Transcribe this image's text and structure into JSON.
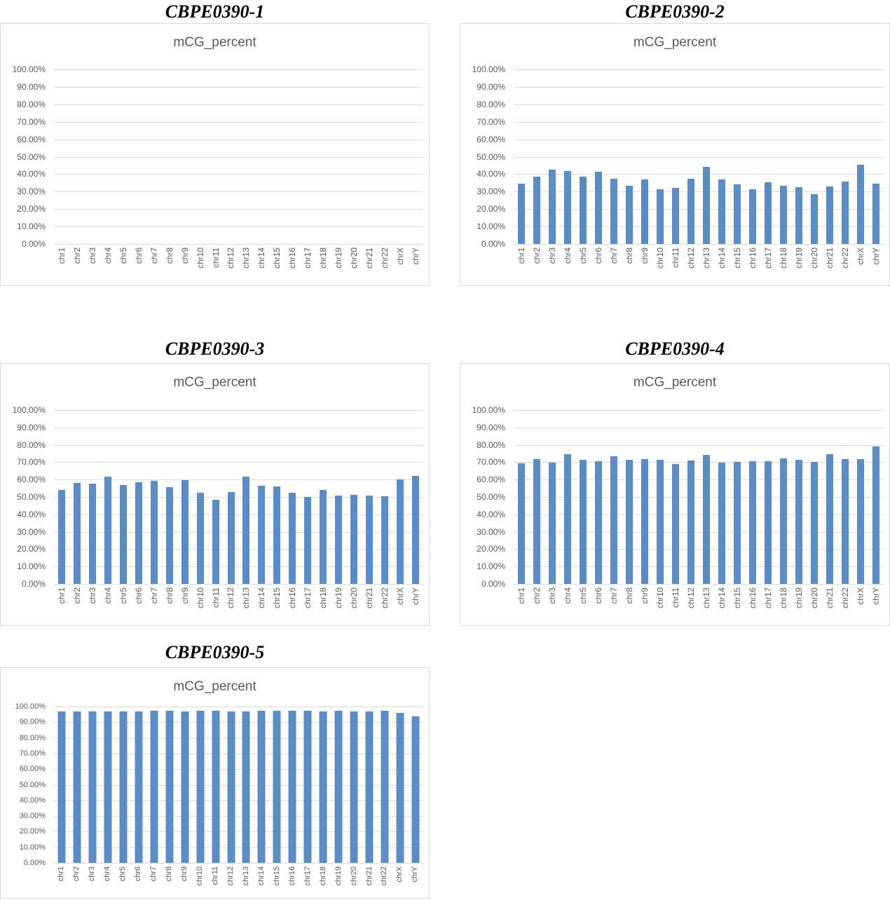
{
  "figure_background": "#ffffff",
  "colors": {
    "bar": "#5a8cc8",
    "gridline": "#d9d9d9",
    "axis_text": "#595959",
    "chart_title_text": "#595959",
    "panel_border": "#d9d9d9",
    "panel_title_text": "#000000"
  },
  "chart_data": [
    {
      "type": "bar",
      "panel_title": "CBPE0390-1",
      "title": "mCG_percent",
      "xlabel": "",
      "ylabel": "",
      "ylim": [
        0,
        100
      ],
      "ytick_step": 10,
      "ytick_labels": [
        "100.00%",
        "90.00%",
        "80.00%",
        "70.00%",
        "60.00%",
        "50.00%",
        "40.00%",
        "30.00%",
        "20.00%",
        "10.00%",
        "0.00%"
      ],
      "grid": true,
      "legend": false,
      "categories": [
        "chr1",
        "chr2",
        "chr3",
        "chr4",
        "chr5",
        "chr6",
        "chr7",
        "chr8",
        "chr9",
        "chr10",
        "chr11",
        "chr12",
        "chr13",
        "chr14",
        "chr15",
        "chr16",
        "chr17",
        "chr18",
        "chr19",
        "chr20",
        "chr21",
        "chr22",
        "chrX",
        "chrY"
      ],
      "values": []
    },
    {
      "type": "bar",
      "panel_title": "CBPE0390-2",
      "title": "mCG_percent",
      "xlabel": "",
      "ylabel": "",
      "ylim": [
        0,
        100
      ],
      "ytick_step": 10,
      "ytick_labels": [
        "100.00%",
        "90.00%",
        "80.00%",
        "70.00%",
        "60.00%",
        "50.00%",
        "40.00%",
        "30.00%",
        "20.00%",
        "10.00%",
        "0.00%"
      ],
      "grid": true,
      "legend": false,
      "categories": [
        "chr1",
        "chr2",
        "chr3",
        "chr4",
        "chr5",
        "chr6",
        "chr7",
        "chr8",
        "chr9",
        "chr10",
        "chr11",
        "chr12",
        "chr13",
        "chr14",
        "chr15",
        "chr16",
        "chr17",
        "chr18",
        "chr19",
        "chr20",
        "chr21",
        "chr22",
        "chrX",
        "chrY"
      ],
      "values": [
        34.5,
        38.4,
        42.6,
        41.6,
        38.7,
        41.2,
        37.5,
        33.5,
        37.1,
        31.5,
        32.0,
        37.2,
        44.0,
        36.8,
        34.3,
        31.3,
        35.5,
        33.2,
        32.5,
        28.5,
        32.9,
        35.9,
        45.5,
        34.5
      ]
    },
    {
      "type": "bar",
      "panel_title": "CBPE0390-3",
      "title": "mCG_percent",
      "xlabel": "",
      "ylabel": "",
      "ylim": [
        0,
        100
      ],
      "ytick_step": 10,
      "ytick_labels": [
        "100.00%",
        "90.00%",
        "80.00%",
        "70.00%",
        "60.00%",
        "50.00%",
        "40.00%",
        "30.00%",
        "20.00%",
        "10.00%",
        "0.00%"
      ],
      "grid": true,
      "legend": false,
      "categories": [
        "chr1",
        "chr2",
        "chr3",
        "chr4",
        "chr5",
        "chr6",
        "chr7",
        "chr8",
        "chr9",
        "chr10",
        "chr11",
        "chr12",
        "chr13",
        "chr14",
        "chr15",
        "chr16",
        "chr17",
        "chr18",
        "chr19",
        "chr20",
        "chr21",
        "chr22",
        "chrX",
        "chrY"
      ],
      "values": [
        54.0,
        58.0,
        57.6,
        61.8,
        56.8,
        58.5,
        59.3,
        55.5,
        59.7,
        52.4,
        48.4,
        52.7,
        61.6,
        56.6,
        56.0,
        52.4,
        50.0,
        54.0,
        50.7,
        51.2,
        50.7,
        50.4,
        60.1,
        62.0
      ]
    },
    {
      "type": "bar",
      "panel_title": "CBPE0390-4",
      "title": "mCG_percent",
      "xlabel": "",
      "ylabel": "",
      "ylim": [
        0,
        100
      ],
      "ytick_step": 10,
      "ytick_labels": [
        "100.00%",
        "90.00%",
        "80.00%",
        "70.00%",
        "60.00%",
        "50.00%",
        "40.00%",
        "30.00%",
        "20.00%",
        "10.00%",
        "0.00%"
      ],
      "grid": true,
      "legend": false,
      "categories": [
        "chr1",
        "chr2",
        "chr3",
        "chr4",
        "chr5",
        "chr6",
        "chr7",
        "chr8",
        "chr9",
        "chr10",
        "chr11",
        "chr12",
        "chr13",
        "chr14",
        "chr15",
        "chr16",
        "chr17",
        "chr18",
        "chr19",
        "chr20",
        "chr21",
        "chr22",
        "chrX",
        "chrY"
      ],
      "values": [
        69.4,
        71.8,
        69.9,
        74.5,
        71.3,
        70.6,
        73.3,
        71.3,
        71.9,
        71.2,
        68.9,
        70.9,
        74.1,
        69.8,
        70.0,
        70.6,
        70.6,
        72.0,
        71.3,
        70.3,
        74.5,
        71.9,
        71.8,
        79.0
      ]
    },
    {
      "type": "bar",
      "panel_title": "CBPE0390-5",
      "title": "mCG_percent",
      "xlabel": "",
      "ylabel": "",
      "ylim": [
        0,
        100
      ],
      "ytick_step": 10,
      "ytick_labels": [
        "100.00%",
        "90.00%",
        "80.00%",
        "70.00%",
        "60.00%",
        "50.00%",
        "40.00%",
        "30.00%",
        "20.00%",
        "10.00%",
        "0.00%"
      ],
      "grid": true,
      "legend": false,
      "categories": [
        "chr1",
        "chr2",
        "chr3",
        "chr4",
        "chr5",
        "chr6",
        "chr7",
        "chr8",
        "chr9",
        "chr10",
        "chr11",
        "chr12",
        "chr13",
        "chr14",
        "chr15",
        "chr16",
        "chr17",
        "chr18",
        "chr19",
        "chr20",
        "chr21",
        "chr22",
        "chrX",
        "chrY"
      ],
      "values": [
        97.0,
        97.0,
        96.8,
        96.8,
        97.0,
        96.9,
        97.2,
        97.3,
        96.9,
        97.2,
        97.3,
        96.8,
        96.8,
        97.2,
        97.2,
        97.5,
        97.2,
        97.0,
        97.5,
        97.1,
        97.1,
        97.3,
        95.9,
        93.6
      ]
    }
  ]
}
